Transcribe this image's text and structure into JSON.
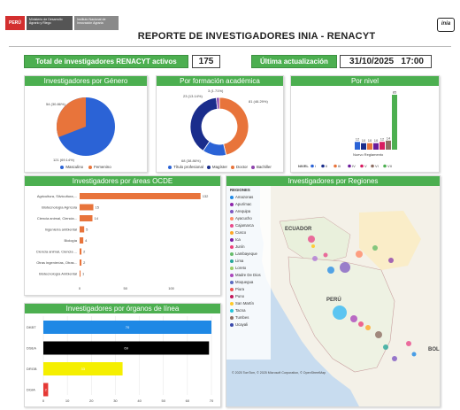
{
  "header": {
    "peru_label": "PERÚ",
    "ministry_label": "Ministerio de Desarrollo Agrario y Riego",
    "institute_label": "Instituto Nacional de Innovación Agraria",
    "title": "REPORTE DE INVESTIGADORES INIA - RENACYT",
    "inia_logo_text": "inia"
  },
  "kpis": {
    "total_label": "Total de investigadores RENACYT activos",
    "total_value": "175",
    "update_label": "Última actualización",
    "update_value": "31/10/2025   17:00"
  },
  "colors": {
    "accent": "#4caf50",
    "blue": "#2b63d6",
    "orange": "#e8743b"
  },
  "charts": {
    "gender": {
      "title": "Investigadores por Género",
      "label_top": "54 (30.86%)",
      "label_bottom": "121 (69.14%)",
      "legend": [
        "Masculino",
        "Femenino"
      ]
    },
    "formation": {
      "title": "Por formación académica",
      "labels": [
        "23 (13.14%)",
        "3 (1.71%)",
        "81 (46.29%)",
        "68 (38.86%)"
      ],
      "legend": [
        "Título profesional",
        "Magíster",
        "Doctor",
        "Bachiller"
      ]
    },
    "level": {
      "title": "Por nivel",
      "category": "Nuevo Reglamento",
      "legend_label": "NIVEL",
      "legend": [
        "I",
        "II",
        "III",
        "IV",
        "V",
        "VI",
        "VII"
      ],
      "bar_labels": [
        "12",
        "10",
        "10",
        "10",
        "12",
        "14",
        "85"
      ]
    },
    "ocde": {
      "title": "Investigadores por áreas OCDE",
      "ticks": [
        "0",
        "50",
        "100"
      ]
    },
    "organs": {
      "title": "Investigadores por órganos de línea",
      "ticks": [
        "0",
        "10",
        "20",
        "30",
        "40",
        "50",
        "60",
        "70"
      ]
    },
    "map": {
      "title": "Investigadores por Regiones",
      "legend_title": "REGIONES",
      "regions": [
        "Amazonas",
        "Apurímac",
        "Arequipa",
        "Ayacucho",
        "Cajamarca",
        "Cusco",
        "Ica",
        "Junín",
        "Lambayeque",
        "Lima",
        "Loreto",
        "Madre De Dios",
        "Moquegua",
        "Piura",
        "Puno",
        "San Martín",
        "Tacna",
        "Tumbes",
        "Ucayali"
      ],
      "country_labels": [
        "ECUADOR",
        "PERÚ",
        "BOL"
      ],
      "credit": "© 2025 TomTom, © 2025 Microsoft Corporation, © OpenStreetMap"
    }
  },
  "chart_data": [
    {
      "type": "pie",
      "categories": [
        "Masculino",
        "Femenino"
      ],
      "values": [
        121,
        54
      ],
      "title": "Investigadores por Género"
    },
    {
      "type": "pie",
      "categories": [
        "Título profesional",
        "Magíster",
        "Doctor",
        "Bachiller"
      ],
      "values": [
        23,
        68,
        81,
        3
      ],
      "title": "Por formación académica"
    },
    {
      "type": "bar",
      "categories": [
        "Nuevo Reglamento"
      ],
      "series": [
        {
          "name": "I",
          "values": [
            12
          ]
        },
        {
          "name": "II",
          "values": [
            10
          ]
        },
        {
          "name": "III",
          "values": [
            10
          ]
        },
        {
          "name": "IV",
          "values": [
            10
          ]
        },
        {
          "name": "V",
          "values": [
            12
          ]
        },
        {
          "name": "VI",
          "values": [
            14
          ]
        },
        {
          "name": "VII",
          "values": [
            85
          ]
        }
      ],
      "title": "Por nivel"
    },
    {
      "type": "bar",
      "orientation": "horizontal",
      "categories": [
        "Agricultura, Silvicultura,...",
        "Biotecnología Agrícola",
        "Ciencia animal, Ciencia...",
        "Ingeniería ambiental",
        "Biología",
        "Ciencia animal, Ciencia ...",
        "Otras ingenierías, Otras...",
        "Biotecnología Ambiental"
      ],
      "values": [
        132,
        15,
        14,
        5,
        4,
        2,
        2,
        1
      ],
      "xlim": [
        0,
        140
      ],
      "title": "Investigadores por áreas OCDE"
    },
    {
      "type": "bar",
      "orientation": "horizontal",
      "categories": [
        "DKBT",
        "DSEA",
        "DRGB",
        "DGIA"
      ],
      "values": [
        70,
        69,
        33,
        2
      ],
      "colors": [
        "#1e88e5",
        "#000000",
        "#f5ef00",
        "#e53935"
      ],
      "xlim": [
        0,
        70
      ],
      "title": "Investigadores por órganos de línea"
    }
  ]
}
